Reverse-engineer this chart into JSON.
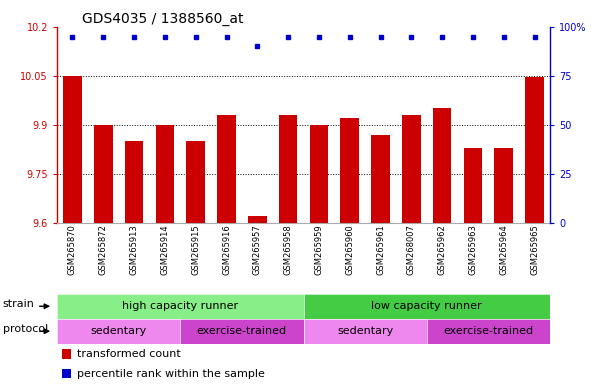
{
  "title": "GDS4035 / 1388560_at",
  "samples": [
    "GSM265870",
    "GSM265872",
    "GSM265913",
    "GSM265914",
    "GSM265915",
    "GSM265916",
    "GSM265957",
    "GSM265958",
    "GSM265959",
    "GSM265960",
    "GSM265961",
    "GSM268007",
    "GSM265962",
    "GSM265963",
    "GSM265964",
    "GSM265965"
  ],
  "bar_values": [
    10.05,
    9.9,
    9.85,
    9.9,
    9.85,
    9.93,
    9.62,
    9.93,
    9.9,
    9.92,
    9.87,
    9.93,
    9.95,
    9.83,
    9.83,
    10.047
  ],
  "percentile_values": [
    100,
    100,
    100,
    100,
    100,
    100,
    95,
    100,
    100,
    100,
    100,
    100,
    100,
    100,
    100,
    100
  ],
  "ylim": [
    9.6,
    10.2
  ],
  "yticks": [
    9.6,
    9.75,
    9.9,
    10.05,
    10.2
  ],
  "ytick_labels": [
    "9.6",
    "9.75",
    "9.9",
    "10.05",
    "10.2"
  ],
  "y2lim": [
    0,
    100
  ],
  "y2ticks": [
    0,
    25,
    50,
    75,
    100
  ],
  "y2tick_labels": [
    "0",
    "25",
    "50",
    "75",
    "100%"
  ],
  "bar_color": "#cc0000",
  "dot_color": "#0000cc",
  "bar_width": 0.6,
  "strain_groups": [
    {
      "label": "high capacity runner",
      "start": 0,
      "end": 8,
      "color": "#88ee88"
    },
    {
      "label": "low capacity runner",
      "start": 8,
      "end": 16,
      "color": "#44cc44"
    }
  ],
  "protocol_groups": [
    {
      "label": "sedentary",
      "start": 0,
      "end": 4,
      "color": "#ee88ee"
    },
    {
      "label": "exercise-trained",
      "start": 4,
      "end": 8,
      "color": "#cc44cc"
    },
    {
      "label": "sedentary",
      "start": 8,
      "end": 12,
      "color": "#ee88ee"
    },
    {
      "label": "exercise-trained",
      "start": 12,
      "end": 16,
      "color": "#cc44cc"
    }
  ],
  "strain_label": "strain",
  "protocol_label": "protocol",
  "legend_items": [
    {
      "color": "#cc0000",
      "label": "transformed count"
    },
    {
      "color": "#0000cc",
      "label": "percentile rank within the sample"
    }
  ],
  "title_fontsize": 10,
  "tick_fontsize": 7,
  "label_fontsize": 8,
  "sample_fontsize": 6
}
